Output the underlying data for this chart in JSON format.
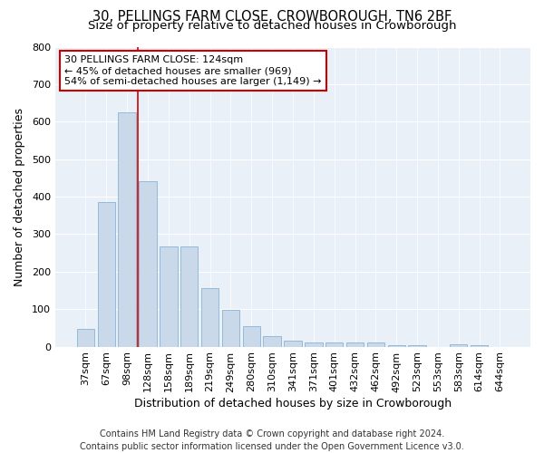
{
  "title_line1": "30, PELLINGS FARM CLOSE, CROWBOROUGH, TN6 2BF",
  "title_line2": "Size of property relative to detached houses in Crowborough",
  "xlabel": "Distribution of detached houses by size in Crowborough",
  "ylabel": "Number of detached properties",
  "bar_labels": [
    "37sqm",
    "67sqm",
    "98sqm",
    "128sqm",
    "158sqm",
    "189sqm",
    "219sqm",
    "249sqm",
    "280sqm",
    "310sqm",
    "341sqm",
    "371sqm",
    "401sqm",
    "432sqm",
    "462sqm",
    "492sqm",
    "523sqm",
    "553sqm",
    "583sqm",
    "614sqm",
    "644sqm"
  ],
  "bar_values": [
    47,
    385,
    625,
    440,
    267,
    267,
    155,
    97,
    55,
    27,
    17,
    10,
    12,
    12,
    10,
    5,
    5,
    0,
    7,
    5,
    0
  ],
  "bar_color": "#c9d9ea",
  "bar_edgecolor": "#7aaacf",
  "vline_x": 2.5,
  "vline_color": "#cc0000",
  "annotation_text": "30 PELLINGS FARM CLOSE: 124sqm\n← 45% of detached houses are smaller (969)\n54% of semi-detached houses are larger (1,149) →",
  "annotation_box_facecolor": "#ffffff",
  "annotation_box_edgecolor": "#cc0000",
  "ylim": [
    0,
    800
  ],
  "yticks": [
    0,
    100,
    200,
    300,
    400,
    500,
    600,
    700,
    800
  ],
  "fig_bg_color": "#ffffff",
  "axes_bg_color": "#eaf0f8",
  "grid_color": "#ffffff",
  "title_fontsize": 10.5,
  "subtitle_fontsize": 9.5,
  "annotation_fontsize": 8,
  "footer_fontsize": 7,
  "xlabel_fontsize": 9,
  "ylabel_fontsize": 9,
  "tick_fontsize": 8,
  "footer": "Contains HM Land Registry data © Crown copyright and database right 2024.\nContains public sector information licensed under the Open Government Licence v3.0."
}
